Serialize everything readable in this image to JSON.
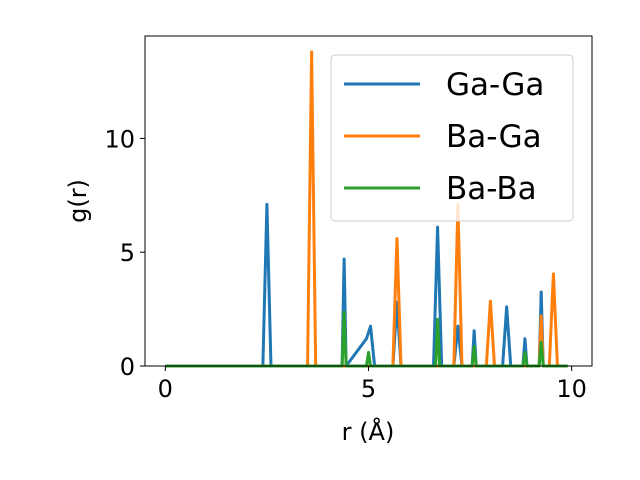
{
  "chart_data": {
    "type": "line",
    "xlabel": "r (Å)",
    "ylabel": "g(r)",
    "xlim": [
      -0.5,
      10.5
    ],
    "ylim": [
      0,
      14.5
    ],
    "xticks": [
      0,
      5,
      10
    ],
    "yticks": [
      0,
      5,
      10
    ],
    "xtick_labels": [
      "0",
      "5",
      "10"
    ],
    "ytick_labels": [
      "0",
      "5",
      "10"
    ],
    "grid": false,
    "legend_position": "top-right",
    "series": [
      {
        "name": "Ga-Ga",
        "color": "#1f77b4",
        "x": [
          0,
          2.4,
          2.5,
          2.6,
          4.35,
          4.4,
          4.45,
          4.95,
          5.05,
          5.15,
          5.6,
          5.7,
          5.8,
          6.6,
          6.7,
          6.8,
          7.1,
          7.2,
          7.3,
          7.55,
          7.6,
          7.65,
          8.3,
          8.4,
          8.5,
          8.8,
          8.85,
          8.9,
          9.2,
          9.25,
          9.3,
          9.9
        ],
        "y": [
          0,
          0,
          7.1,
          0,
          0,
          4.7,
          0,
          1.2,
          1.75,
          0,
          0,
          2.8,
          0,
          0,
          6.1,
          0,
          0,
          1.75,
          0,
          0,
          1.55,
          0,
          0,
          2.6,
          0,
          0,
          1.2,
          0,
          0,
          3.25,
          0,
          0
        ]
      },
      {
        "name": "Ba-Ga",
        "color": "#ff7f0e",
        "x": [
          0,
          3.5,
          3.6,
          3.7,
          5.6,
          5.7,
          5.8,
          7.1,
          7.2,
          7.3,
          7.9,
          8.0,
          8.1,
          9.2,
          9.25,
          9.3,
          9.45,
          9.55,
          9.65,
          9.9
        ],
        "y": [
          0,
          0,
          13.8,
          0,
          0,
          5.6,
          0,
          0,
          7.1,
          0,
          0,
          2.85,
          0,
          0,
          2.2,
          0,
          0,
          4.05,
          0,
          0
        ]
      },
      {
        "name": "Ba-Ba",
        "color": "#2ca02c",
        "x": [
          0,
          4.35,
          4.4,
          4.45,
          4.95,
          5.0,
          5.05,
          6.65,
          6.7,
          6.75,
          7.55,
          7.6,
          7.65,
          8.8,
          8.85,
          8.9,
          9.2,
          9.25,
          9.3,
          9.9
        ],
        "y": [
          0,
          0,
          2.35,
          0,
          0,
          0.6,
          0,
          0,
          2.05,
          0,
          0,
          0.85,
          0,
          0,
          0.6,
          0,
          0,
          1.05,
          0,
          0
        ]
      }
    ]
  }
}
